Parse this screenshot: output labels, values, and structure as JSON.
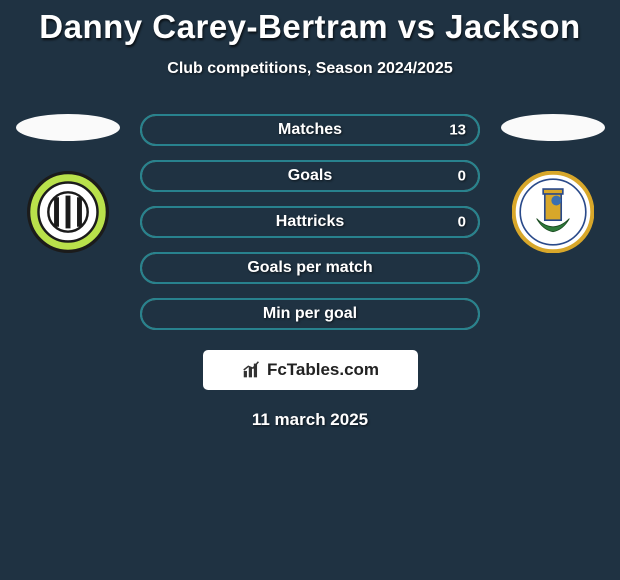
{
  "title": "Danny Carey-Bertram vs Jackson",
  "subtitle": "Club competitions, Season 2024/2025",
  "date": "11 march 2025",
  "brand": "FcTables.com",
  "colors": {
    "background": "#1f3242",
    "text": "#ffffff",
    "oval": "#fafafa",
    "bar_outer_border": "#76a585",
    "bar_inner_border": "#28828e",
    "brand_bg": "#ffffff"
  },
  "bars": [
    {
      "label": "Matches",
      "left": "",
      "right": "13",
      "fill_start": 0,
      "fill_end": 100
    },
    {
      "label": "Goals",
      "left": "",
      "right": "0",
      "fill_start": 0,
      "fill_end": 100
    },
    {
      "label": "Hattricks",
      "left": "",
      "right": "0",
      "fill_start": 0,
      "fill_end": 100
    },
    {
      "label": "Goals per match",
      "left": "",
      "right": "",
      "fill_start": 0,
      "fill_end": 100
    },
    {
      "label": "Min per goal",
      "left": "",
      "right": "",
      "fill_start": 0,
      "fill_end": 100
    }
  ],
  "crests": {
    "left": {
      "name": "forest-green-rovers"
    },
    "right": {
      "name": "sutton-united"
    }
  }
}
